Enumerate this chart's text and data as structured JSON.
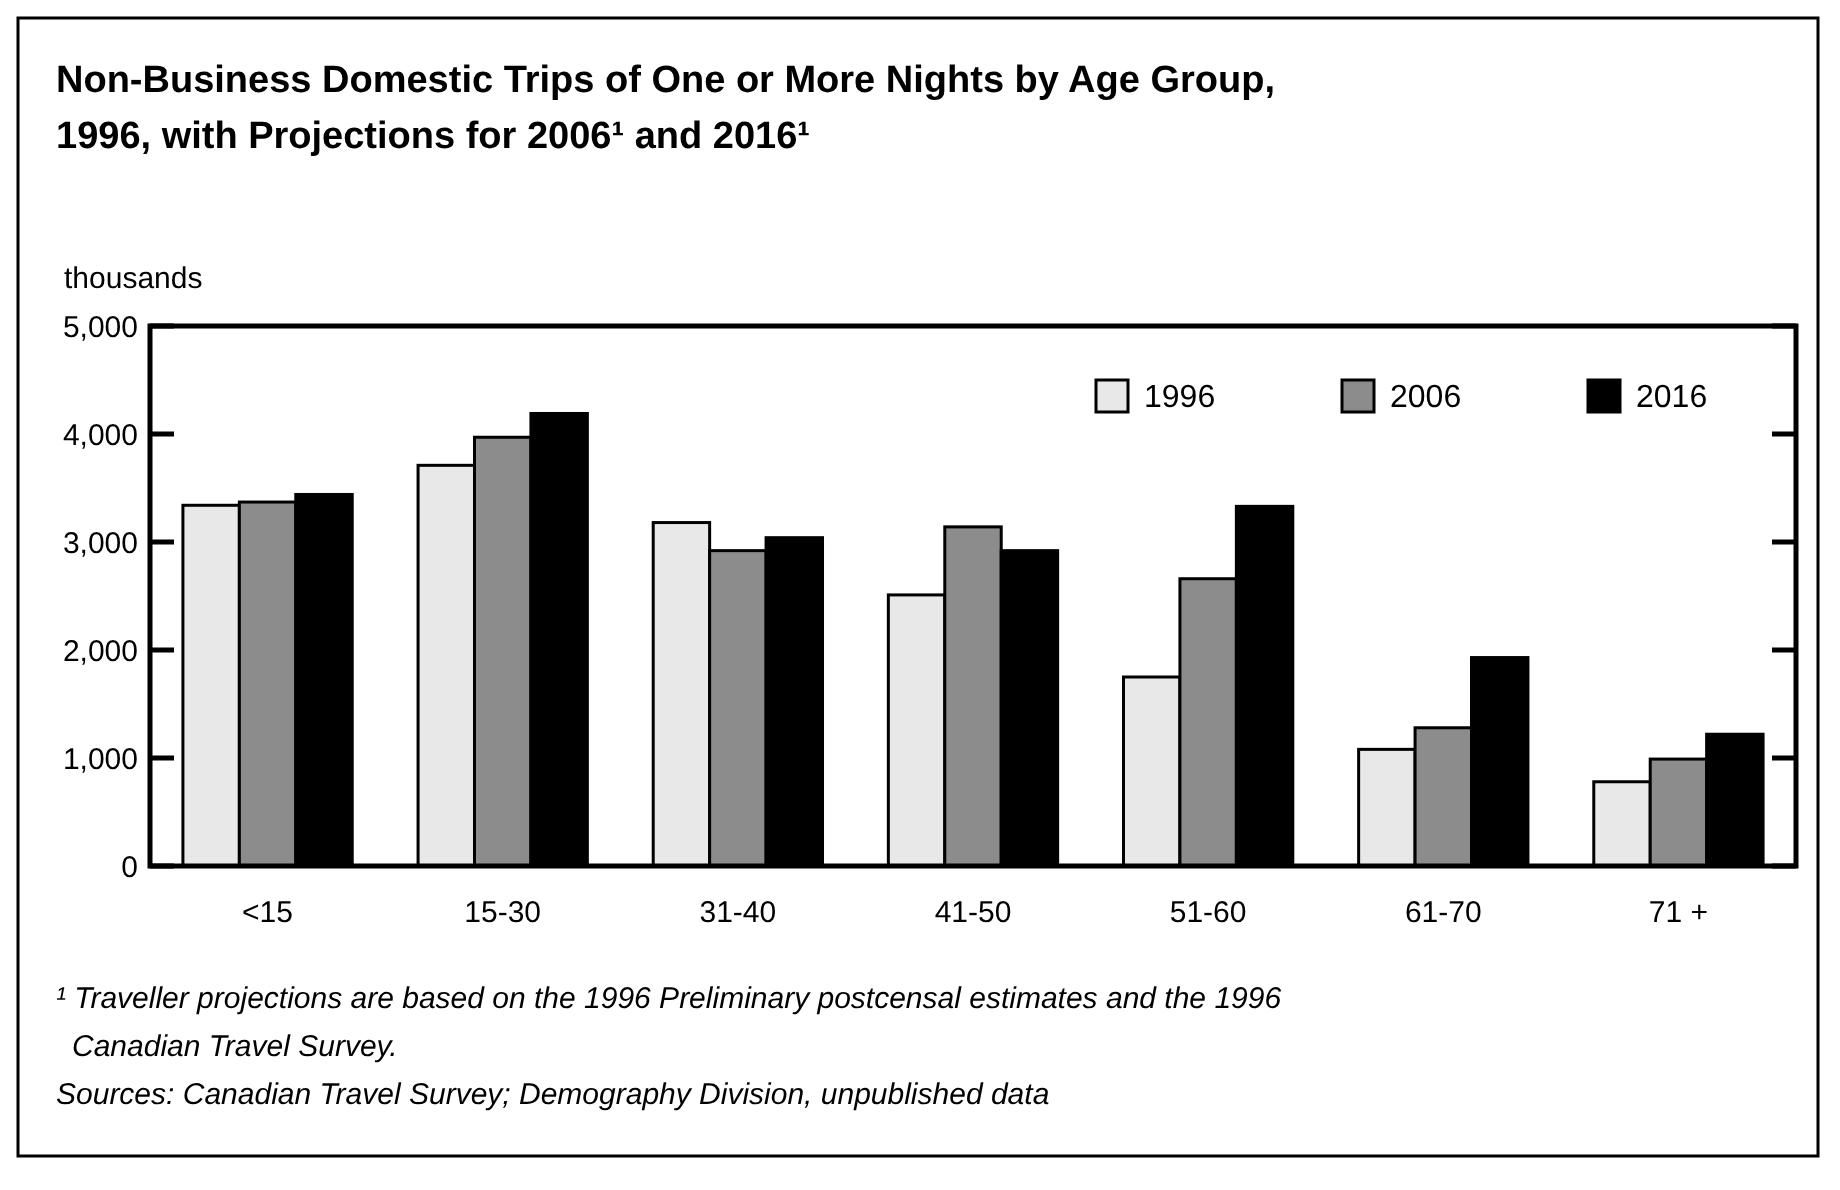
{
  "chart_data": {
    "type": "bar",
    "title": "Non-Business Domestic Trips of One or More Nights by Age Group, 1996, with Projections for 2006¹ and 2016¹",
    "ylabel": "thousands",
    "categories": [
      "<15",
      "15-30",
      "31-40",
      "41-50",
      "51-60",
      "61-70",
      "71 +"
    ],
    "series": [
      {
        "name": "1996",
        "color": "#e8e8e8",
        "values": [
          3340,
          3710,
          3180,
          2510,
          1750,
          1080,
          780
        ]
      },
      {
        "name": "2006",
        "color": "#8c8c8c",
        "values": [
          3370,
          3970,
          2920,
          3140,
          2660,
          1280,
          990
        ]
      },
      {
        "name": "2016",
        "color": "#000000",
        "values": [
          3440,
          4190,
          3040,
          2920,
          3330,
          1930,
          1220
        ]
      }
    ],
    "ylim": [
      0,
      5000
    ],
    "yticks": [
      0,
      {
        "value": 1000,
        "label": "1,000"
      },
      {
        "value": 2000,
        "label": "2,000"
      },
      {
        "value": 3000,
        "label": "3,000"
      },
      {
        "value": 4000,
        "label": "4,000"
      },
      {
        "value": 5000,
        "label": "5,000"
      }
    ],
    "grid": false,
    "legend": "top right",
    "annotations": [
      "¹ Traveller projections are based on the 1996 Preliminary postcensal estimates and the 1996 Canadian Travel Survey.",
      "Sources:  Canadian Travel Survey; Demography Division, unpublished data"
    ]
  }
}
